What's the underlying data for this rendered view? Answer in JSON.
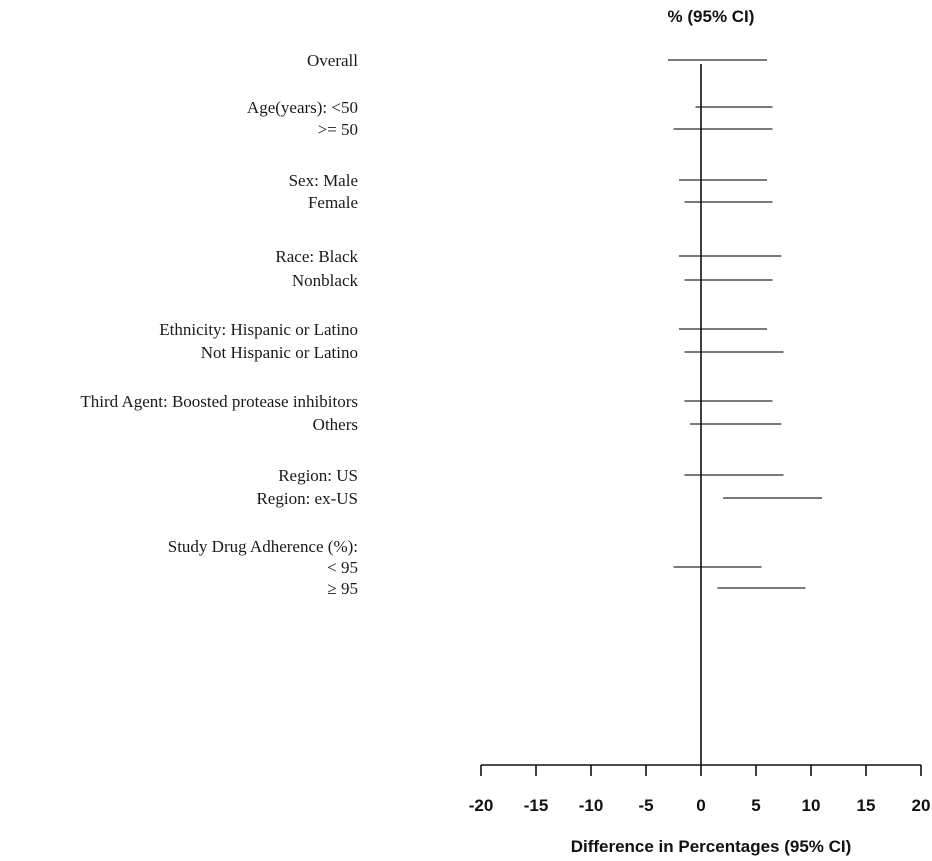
{
  "chart_data": {
    "type": "forest",
    "column_header": "% (95% CI)",
    "xlabel": "Difference in Percentages (95% CI)",
    "xlim": [
      -20,
      20
    ],
    "x_ticks": [
      "-20",
      "-15",
      "-10",
      "-5",
      "0",
      "5",
      "10",
      "15",
      "20"
    ],
    "reference_line": 0,
    "rows": [
      {
        "label": "Overall",
        "lower": -3.0,
        "upper": 6.0
      },
      {
        "label": "Age(years): <50",
        "lower": -0.5,
        "upper": 6.5
      },
      {
        "label": ">= 50",
        "lower": -2.5,
        "upper": 6.5
      },
      {
        "label": "Sex: Male",
        "lower": -2.0,
        "upper": 6.0
      },
      {
        "label": "Female",
        "lower": -1.5,
        "upper": 6.5
      },
      {
        "label": "Race: Black",
        "lower": -2.0,
        "upper": 7.3
      },
      {
        "label": "Nonblack",
        "lower": -1.5,
        "upper": 6.5
      },
      {
        "label": "Ethnicity: Hispanic or Latino",
        "lower": -2.0,
        "upper": 6.0
      },
      {
        "label": "Not Hispanic or Latino",
        "lower": -1.5,
        "upper": 7.5
      },
      {
        "label": "Third Agent: Boosted protease inhibitors",
        "lower": -1.5,
        "upper": 6.5
      },
      {
        "label": "Others",
        "lower": -1.0,
        "upper": 7.3
      },
      {
        "label": "Region: US",
        "lower": -1.5,
        "upper": 7.5
      },
      {
        "label": "Region: ex-US",
        "lower": 2.0,
        "upper": 11.0
      },
      {
        "label": "Study Drug Adherence (%):",
        "lower": null,
        "upper": null
      },
      {
        "label": "< 95",
        "lower": -2.5,
        "upper": 5.5
      },
      {
        "label": "≥ 95",
        "lower": 1.5,
        "upper": 9.5
      }
    ]
  }
}
